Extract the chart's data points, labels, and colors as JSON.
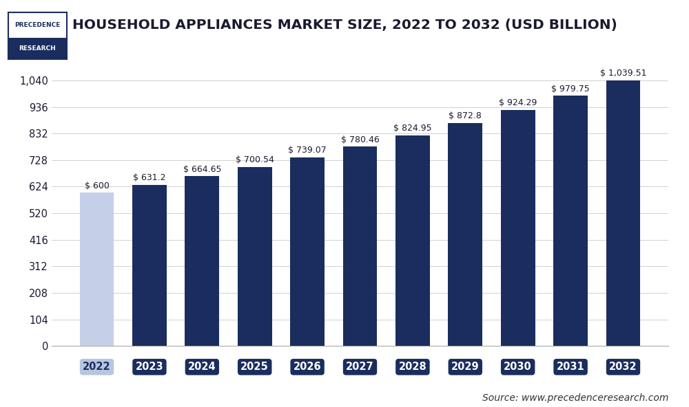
{
  "title": "HOUSEHOLD APPLIANCES MARKET SIZE, 2022 TO 2032 (USD BILLION)",
  "categories": [
    "2022",
    "2023",
    "2024",
    "2025",
    "2026",
    "2027",
    "2028",
    "2029",
    "2030",
    "2031",
    "2032"
  ],
  "values": [
    600,
    631.2,
    664.65,
    700.54,
    739.07,
    780.46,
    824.95,
    872.8,
    924.29,
    979.75,
    1039.51
  ],
  "labels": [
    "$ 600",
    "$ 631.2",
    "$ 664.65",
    "$ 700.54",
    "$ 739.07",
    "$ 780.46",
    "$ 824.95",
    "$ 872.8",
    "$ 924.29",
    "$ 979.75",
    "$ 1,039.51"
  ],
  "first_bar_color": "#c5cfe8",
  "dark_bar_color": "#1a2d5e",
  "background_color": "#ffffff",
  "plot_background": "#ffffff",
  "yticks": [
    0,
    104,
    208,
    312,
    416,
    520,
    624,
    728,
    832,
    936,
    1040
  ],
  "ylim": [
    0,
    1100
  ],
  "grid_color": "#d0d0d0",
  "source_text": "Source: www.precedenceresearch.com",
  "title_fontsize": 14.5,
  "bar_label_fontsize": 9,
  "tick_fontsize": 10.5,
  "source_fontsize": 10,
  "tick_box_color_2022": "#b8c5e0",
  "tick_box_color_rest": "#1a2d5e",
  "tick_text_color_2022": "#1a2d5e",
  "tick_text_color_rest": "#ffffff",
  "logo_top_bg": "#ffffff",
  "logo_bottom_bg": "#1a2d5e",
  "logo_top_text": "#1a2d5e",
  "logo_bottom_text": "#ffffff"
}
